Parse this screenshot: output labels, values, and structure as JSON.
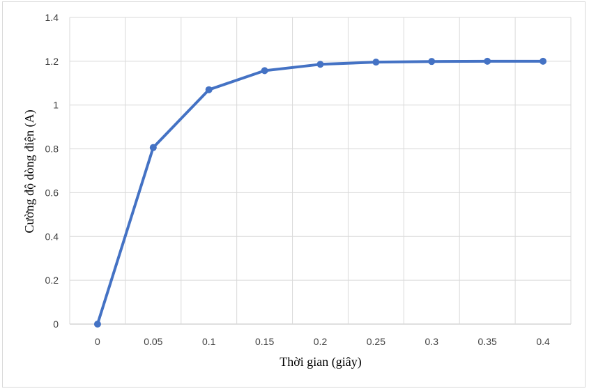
{
  "chart_data": {
    "type": "line",
    "xlabel": "Thời gian (giây)",
    "ylabel": "Cường độ dòng điện (A)",
    "x": [
      0,
      0.05,
      0.1,
      0.15,
      0.2,
      0.25,
      0.3,
      0.35,
      0.4
    ],
    "x_tick_labels": [
      "0",
      "0.05",
      "0.1",
      "0.15",
      "0.2",
      "0.25",
      "0.3",
      "0.35",
      "0.4"
    ],
    "y_tick_labels": [
      "0",
      "0.2",
      "0.4",
      "0.6",
      "0.8",
      "1",
      "1.2",
      "1.4"
    ],
    "y_ticks": [
      0,
      0.2,
      0.4,
      0.6,
      0.8,
      1,
      1.2,
      1.4
    ],
    "ylim": [
      0,
      1.4
    ],
    "grid": true,
    "legend": "none",
    "series": [
      {
        "values": [
          0,
          0.806,
          1.07,
          1.157,
          1.186,
          1.196,
          1.199,
          1.2,
          1.2
        ],
        "color": "#4472c4"
      }
    ]
  }
}
